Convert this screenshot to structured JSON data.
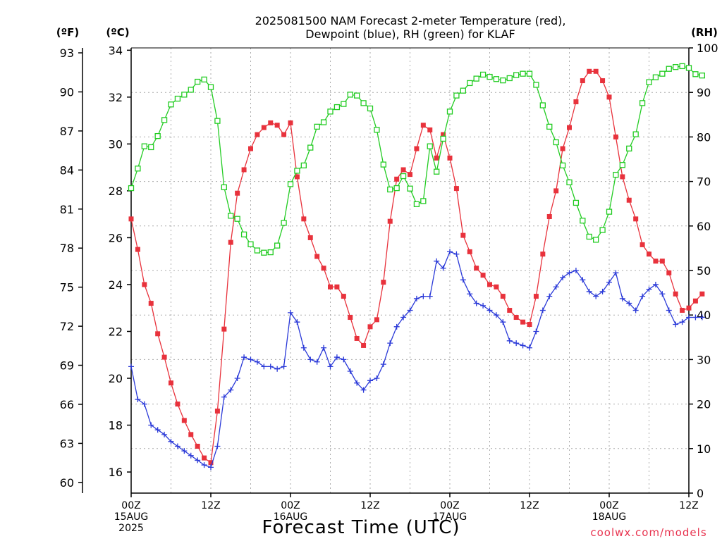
{
  "chart_data": {
    "type": "line",
    "title_line1": "2025081500 NAM Forecast 2-meter Temperature (red),",
    "title_line2": "Dewpoint (blue), RH (green) for KLAF",
    "unit_f": "(ºF)",
    "unit_c": "(ºC)",
    "unit_rh": "(RH)",
    "xlabel": "Forecast Time (UTC)",
    "credit": "coolwx.com/models",
    "y_left_c": {
      "ticks": [
        16,
        18,
        20,
        22,
        24,
        26,
        28,
        30,
        32,
        34
      ],
      "range": [
        15.1,
        34.1
      ]
    },
    "y_left_f": {
      "ticks": [
        60,
        63,
        66,
        69,
        72,
        75,
        78,
        81,
        84,
        87,
        90,
        93
      ]
    },
    "y_right_rh": {
      "ticks": [
        0,
        10,
        20,
        30,
        40,
        50,
        60,
        70,
        80,
        90,
        100
      ],
      "range": [
        0,
        100
      ]
    },
    "x_axis": {
      "range_hours": [
        0,
        84
      ],
      "ticks": [
        {
          "hour": 0,
          "lines": [
            "00Z",
            "15AUG",
            "2025"
          ]
        },
        {
          "hour": 12,
          "lines": [
            "12Z"
          ]
        },
        {
          "hour": 24,
          "lines": [
            "00Z",
            "16AUG"
          ]
        },
        {
          "hour": 36,
          "lines": [
            "12Z"
          ]
        },
        {
          "hour": 48,
          "lines": [
            "00Z",
            "17AUG"
          ]
        },
        {
          "hour": 60,
          "lines": [
            "12Z"
          ]
        },
        {
          "hour": 72,
          "lines": [
            "00Z",
            "18AUG"
          ]
        },
        {
          "hour": 84,
          "lines": [
            "12Z"
          ]
        }
      ]
    },
    "grid": true,
    "series": [
      {
        "key": "temperature",
        "color": "#e8323c",
        "marker": "filled-square",
        "values": [
          26.8,
          25.5,
          24.0,
          23.2,
          21.9,
          20.9,
          19.8,
          18.9,
          18.2,
          17.6,
          17.1,
          16.6,
          16.4,
          18.6,
          22.1,
          25.8,
          27.9,
          28.9,
          29.8,
          30.4,
          30.7,
          30.9,
          30.8,
          30.4,
          30.9,
          28.6,
          26.8,
          26.0,
          25.2,
          24.7,
          23.9,
          23.9,
          23.5,
          22.6,
          21.7,
          21.4,
          22.2,
          22.5,
          24.1,
          26.7,
          28.5,
          28.9,
          28.7,
          29.8,
          30.8,
          30.6,
          29.4,
          30.4,
          29.4,
          28.1,
          26.1,
          25.4,
          24.7,
          24.4,
          24.0,
          23.9,
          23.5,
          22.9,
          22.6,
          22.4,
          22.3,
          23.5,
          25.3,
          26.9,
          28.0,
          29.8,
          30.7,
          31.8,
          32.7,
          33.1,
          33.1,
          32.7,
          32.0,
          30.3,
          28.6,
          27.6,
          26.8,
          25.7,
          25.3,
          25.0,
          25.0,
          24.5,
          23.6,
          22.9,
          23.0,
          23.3,
          23.6
        ]
      },
      {
        "key": "dewpoint",
        "color": "#2a39d8",
        "marker": "plus",
        "values": [
          20.5,
          19.1,
          18.9,
          18.0,
          17.8,
          17.6,
          17.3,
          17.1,
          16.9,
          16.7,
          16.5,
          16.3,
          16.2,
          17.1,
          19.2,
          19.5,
          20.0,
          20.9,
          20.8,
          20.7,
          20.5,
          20.5,
          20.4,
          20.5,
          22.8,
          22.4,
          21.3,
          20.8,
          20.7,
          21.3,
          20.5,
          20.9,
          20.8,
          20.3,
          19.8,
          19.5,
          19.9,
          20.0,
          20.6,
          21.5,
          22.2,
          22.6,
          22.9,
          23.4,
          23.5,
          23.5,
          25.0,
          24.7,
          25.4,
          25.3,
          24.2,
          23.6,
          23.2,
          23.1,
          22.9,
          22.7,
          22.4,
          21.6,
          21.5,
          21.4,
          21.3,
          22.0,
          22.9,
          23.5,
          23.9,
          24.3,
          24.5,
          24.6,
          24.2,
          23.7,
          23.5,
          23.7,
          24.1,
          24.5,
          23.4,
          23.2,
          22.9,
          23.5,
          23.8,
          24.0,
          23.6,
          22.9,
          22.3,
          22.4,
          22.6,
          22.6,
          22.6
        ]
      },
      {
        "key": "rh",
        "color": "#22cc22",
        "marker": "open-square",
        "values": [
          68.5,
          72.9,
          77.9,
          77.7,
          80.2,
          83.8,
          87.3,
          88.6,
          89.5,
          90.6,
          92.4,
          92.9,
          91.2,
          83.6,
          68.7,
          62.3,
          61.6,
          58.1,
          55.9,
          54.5,
          54.0,
          54.1,
          55.6,
          60.7,
          69.4,
          72.4,
          73.6,
          77.6,
          82.3,
          83.3,
          85.7,
          86.7,
          87.4,
          89.5,
          89.3,
          87.6,
          86.4,
          81.6,
          73.8,
          68.2,
          68.5,
          71.2,
          68.4,
          64.9,
          65.6,
          77.9,
          72.2,
          79.6,
          85.7,
          89.3,
          90.4,
          92.1,
          93.1,
          94.0,
          93.5,
          93.0,
          92.7,
          93.2,
          93.9,
          94.2,
          94.2,
          91.7,
          87.1,
          82.3,
          78.8,
          73.6,
          69.8,
          65.2,
          61.2,
          57.6,
          56.9,
          59.1,
          63.2,
          71.5,
          73.7,
          77.4,
          80.6,
          87.6,
          92.3,
          93.4,
          94.2,
          95.3,
          95.7,
          95.9,
          95.5,
          94.1,
          93.8
        ]
      }
    ]
  }
}
